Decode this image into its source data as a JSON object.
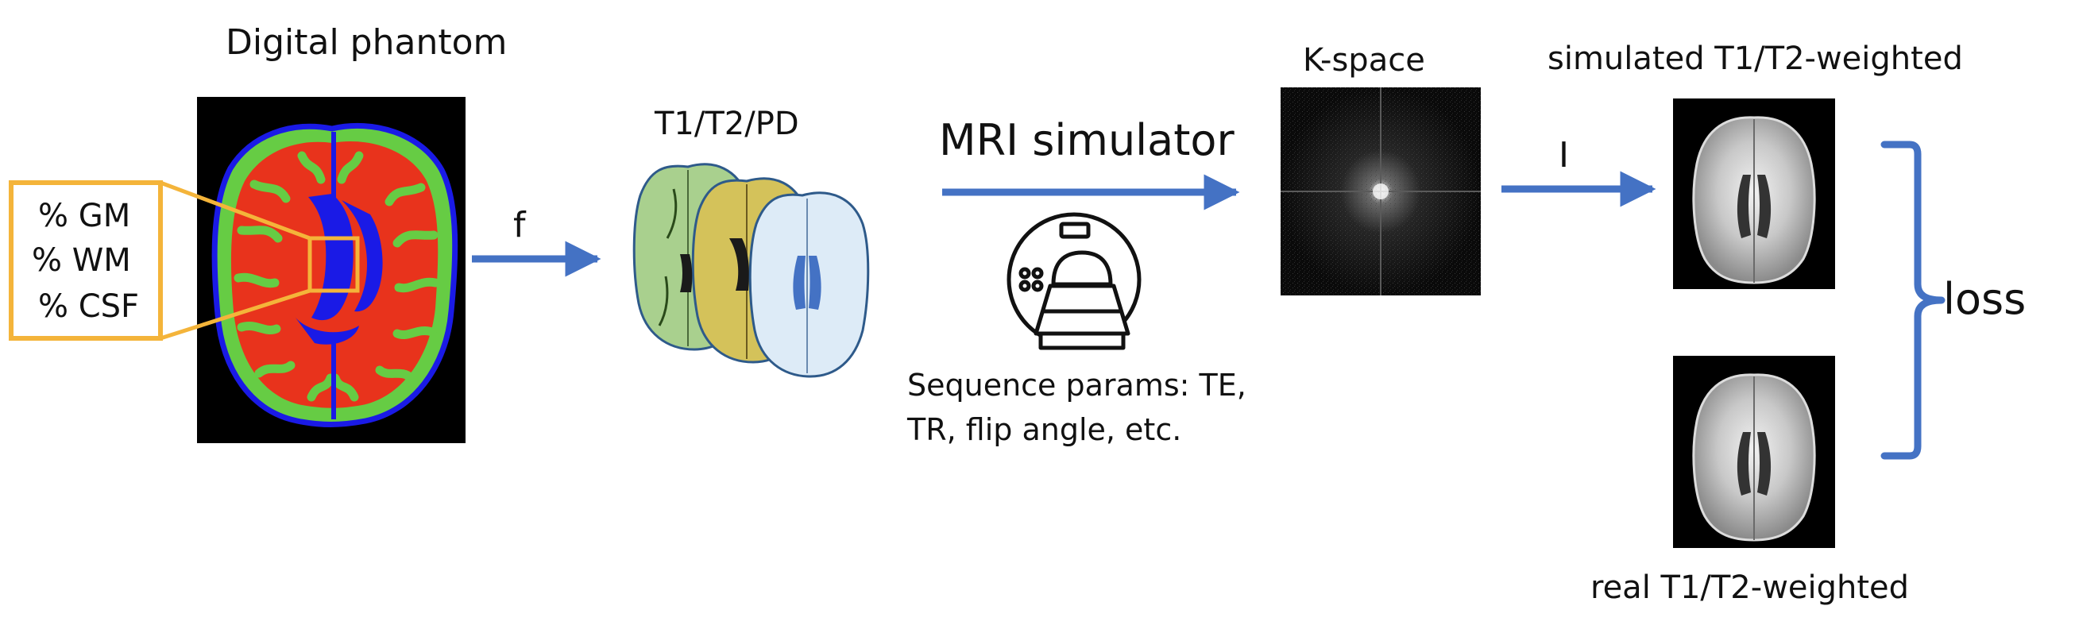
{
  "phantom": {
    "title": "Digital phantom",
    "tissues": [
      "% GM",
      "% WM",
      "% CSF"
    ]
  },
  "arrow_f": {
    "label": "f"
  },
  "maps": {
    "title": "T1/T2/PD"
  },
  "simulator": {
    "title": "MRI simulator",
    "params_line1": "Sequence params: TE,",
    "params_line2": "TR, flip angle, etc."
  },
  "kspace": {
    "title": "K-space"
  },
  "arrow_i": {
    "label": "I"
  },
  "simulated": {
    "title": "simulated T1/T2-weighted"
  },
  "real": {
    "title": "real T1/T2-weighted"
  },
  "loss": {
    "label": "loss"
  },
  "colors": {
    "arrow": "#4472C4",
    "highlight_box": "#F4B43A",
    "gm": "#66CC44",
    "wm": "#E8331C",
    "csf": "#1A1AE6",
    "map_t1": "#A9D08E",
    "map_t2": "#D4C25A",
    "map_pd": "#DDEBF7"
  }
}
